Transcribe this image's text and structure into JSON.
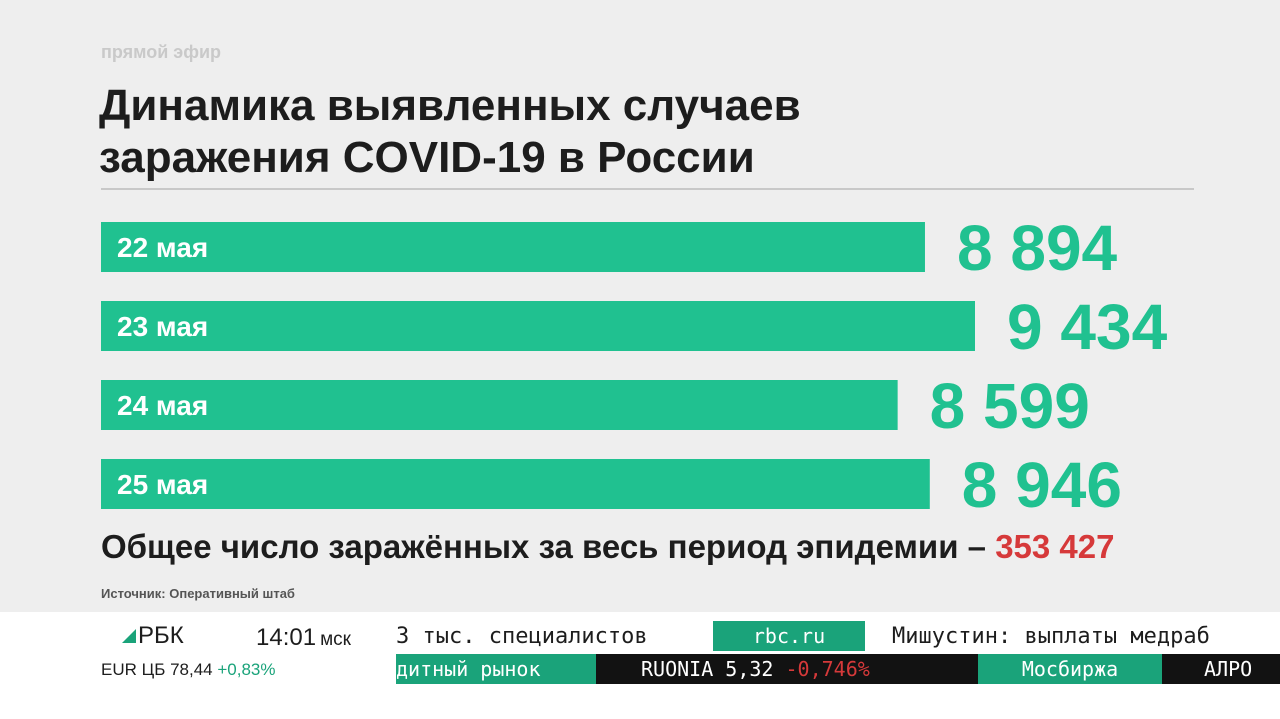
{
  "header": {
    "live_label": "прямой эфир",
    "title_line1": "Динамика выявленных случаев",
    "title_line2": "заражения COVID-19 в России"
  },
  "chart_data": {
    "type": "bar",
    "orientation": "horizontal",
    "title": "Динамика выявленных случаев заражения COVID-19 в России",
    "categories": [
      "22 мая",
      "23 мая",
      "24 мая",
      "25 мая"
    ],
    "values": [
      8894,
      9434,
      8599,
      8946
    ],
    "value_labels": [
      "8 894",
      "9 434",
      "8 599",
      "8 946"
    ],
    "bar_color": "#20c190",
    "label_color": "#20c190"
  },
  "total": {
    "label": "Общее число заражённых за весь период эпидемии –",
    "value": "353 427",
    "value_color": "#d6393a"
  },
  "source": "Источник: Оперативный штаб",
  "ticker": {
    "logo": "РБК",
    "time": "14:01",
    "timezone": "мск",
    "headline_left": "3 тыс. специалистов",
    "site": "rbc.ru",
    "headline_right": "Мишустин: выплаты медраб",
    "eur_label": "EUR ЦБ",
    "eur_value": "78,44",
    "eur_change": "+0,83%",
    "market_left": "дитный рынок",
    "ruonia_label": "RUONIA",
    "ruonia_value": "5,32",
    "ruonia_change": "-0,746%",
    "exchange": "Мосбиржа",
    "market_right": "АЛРО",
    "accent_color": "#1aa37a"
  }
}
